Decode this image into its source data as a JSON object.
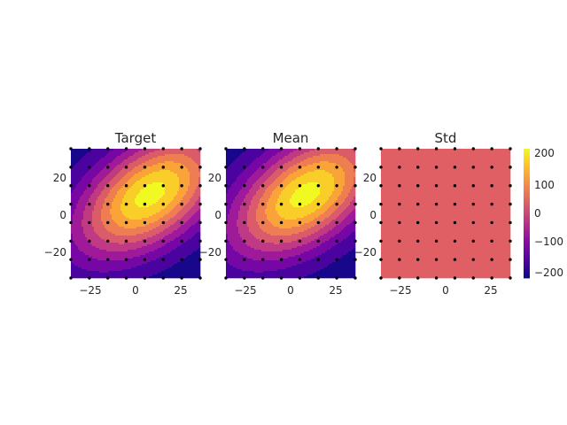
{
  "chart_data": [
    {
      "type": "heatmap",
      "title": "Target",
      "xlim": [
        -35,
        35
      ],
      "ylim": [
        -35,
        35
      ],
      "xticks": [
        "−25",
        "0",
        "25"
      ],
      "yticks": [
        "20",
        "0",
        "−20"
      ],
      "field": {
        "kind": "gaussian",
        "peak": 220,
        "base": -240,
        "cx": 8,
        "cy": 10,
        "sx": 24,
        "sy": 20,
        "rot": -0.5
      },
      "levels": [
        -240,
        -200,
        -150,
        -100,
        -50,
        0,
        50,
        100,
        150,
        200,
        250
      ],
      "sample_points": {
        "x": [
          -35,
          -25,
          -15,
          -5,
          5,
          15,
          25,
          35
        ],
        "y": [
          -35,
          -25,
          -15,
          -5,
          5,
          15,
          25,
          35
        ]
      }
    },
    {
      "type": "heatmap",
      "title": "Mean",
      "xlim": [
        -35,
        35
      ],
      "ylim": [
        -35,
        35
      ],
      "xticks": [
        "−25",
        "0",
        "25"
      ],
      "yticks": [
        "20",
        "0",
        "−20"
      ],
      "field": {
        "kind": "gaussian",
        "peak": 220,
        "base": -240,
        "cx": 8,
        "cy": 10,
        "sx": 24,
        "sy": 20,
        "rot": -0.5
      },
      "levels": [
        -240,
        -200,
        -150,
        -100,
        -50,
        0,
        50,
        100,
        150,
        200,
        250
      ],
      "sample_points": {
        "x": [
          -35,
          -25,
          -15,
          -5,
          5,
          15,
          25,
          35
        ],
        "y": [
          -35,
          -25,
          -15,
          -5,
          5,
          15,
          25,
          35
        ]
      }
    },
    {
      "type": "heatmap",
      "title": "Std",
      "xlim": [
        -35,
        35
      ],
      "ylim": [
        -35,
        35
      ],
      "xticks": [
        "−25",
        "0",
        "25"
      ],
      "yticks": [
        "20",
        "0",
        "−20"
      ],
      "field": {
        "kind": "constant",
        "value": 0
      },
      "levels": [
        -240,
        -200,
        -150,
        -100,
        -50,
        0,
        50,
        100,
        150,
        200,
        250
      ],
      "sample_points": {
        "x": [
          -35,
          -25,
          -15,
          -5,
          5,
          15,
          25,
          35
        ],
        "y": [
          -35,
          -25,
          -15,
          -5,
          5,
          15,
          25,
          35
        ]
      }
    }
  ],
  "colorbar": {
    "colormap": "plasma",
    "range": [
      -230,
      220
    ],
    "ticks": [
      {
        "value": 200,
        "label": "200"
      },
      {
        "value": 100,
        "label": "100"
      },
      {
        "value": 0,
        "label": "0"
      },
      {
        "value": -100,
        "label": "−100"
      },
      {
        "value": -200,
        "label": "−200"
      }
    ]
  },
  "colors": {
    "std_fill": "#df5f65",
    "point_color": "#000000",
    "text": "#262626"
  }
}
